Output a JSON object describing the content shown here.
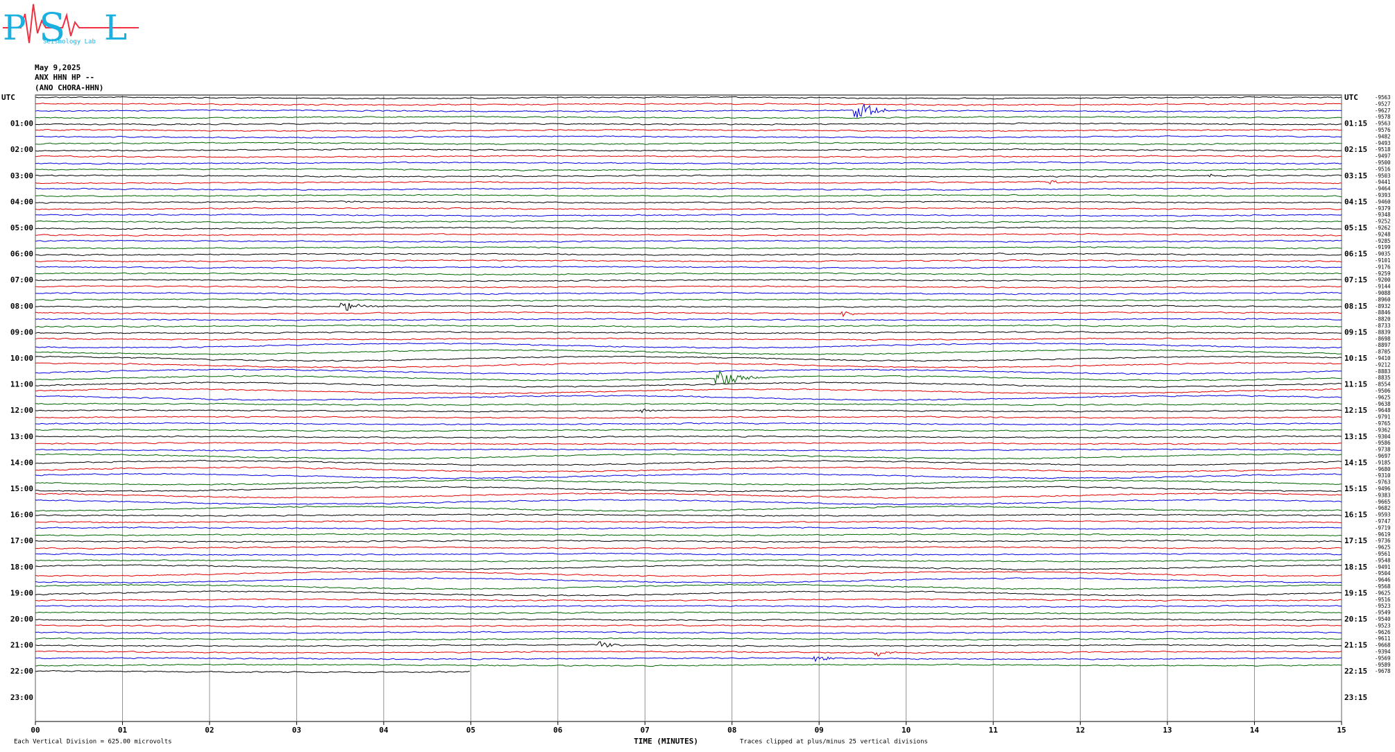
{
  "logo": {
    "letters": [
      "P",
      "S",
      "L"
    ],
    "subtitle": "Seismology Lab"
  },
  "header": {
    "date": "May 9,2025",
    "channel": "ANX HHN HP --",
    "station": "(ANO CHORA-HHN)"
  },
  "left_labels": [
    "UTC",
    "01:00",
    "02:00",
    "03:00",
    "04:00",
    "05:00",
    "06:00",
    "07:00",
    "08:00",
    "09:00",
    "10:00",
    "11:00",
    "12:00",
    "13:00",
    "14:00",
    "15:00",
    "16:00",
    "17:00",
    "18:00",
    "19:00",
    "20:00",
    "21:00",
    "22:00",
    "23:00"
  ],
  "right_labels": [
    "UTC",
    "01:15",
    "02:15",
    "03:15",
    "04:15",
    "05:15",
    "06:15",
    "07:15",
    "08:15",
    "09:15",
    "10:15",
    "11:15",
    "12:15",
    "13:15",
    "14:15",
    "15:15",
    "16:15",
    "17:15",
    "18:15",
    "19:15",
    "20:15",
    "21:15",
    "22:15",
    "23:15"
  ],
  "trace_offsets": [
    "-9563",
    "-9527",
    "-9627",
    "-9578",
    "-9563",
    "-9576",
    "-9482",
    "-9493",
    "-9518",
    "-9497",
    "-9500",
    "-9516",
    "-9503",
    "-9441",
    "-9464",
    "-9393",
    "-9460",
    "-9379",
    "-9348",
    "-9252",
    "-9262",
    "-9248",
    "-9285",
    "-9199",
    "-9035",
    "-9101",
    "-9176",
    "-9259",
    "-9200",
    "-9144",
    "-9088",
    "-8960",
    "-8932",
    "-8846",
    "-8820",
    "-8733",
    "-8839",
    "-8698",
    "-8897",
    "-8705",
    "-9410",
    "-9212",
    "-8883",
    "-8835",
    "-8554",
    "-9506",
    "-9625",
    "-9638",
    "-9648",
    "-9791",
    "-9765",
    "-9362",
    "-9304",
    "-9586",
    "-9738",
    "-9697",
    "-9185",
    "-9680",
    "-9310",
    "-9763",
    "-9496",
    "-9383",
    "-9665",
    "-9682",
    "-9593",
    "-9747",
    "-9719",
    "-9619",
    "-9736",
    "-9625",
    "-9561",
    "-9548",
    "-9491",
    "-9504",
    "-9646",
    "-9568",
    "-9625",
    "-9516",
    "-9523",
    "-9549",
    "-9540",
    "-9523",
    "-9626",
    "-9611",
    "-9668",
    "-9394",
    "-9569",
    "-9589",
    "-9678"
  ],
  "x_labels": [
    "00",
    "01",
    "02",
    "03",
    "04",
    "05",
    "06",
    "07",
    "08",
    "09",
    "10",
    "11",
    "12",
    "13",
    "14",
    "15"
  ],
  "x_axis_title": "TIME (MINUTES)",
  "footer": {
    "scale": "Each Vertical Division =  625.00 microvolts",
    "clip": "Traces clipped at plus/minus 25 vertical divisions"
  }
}
